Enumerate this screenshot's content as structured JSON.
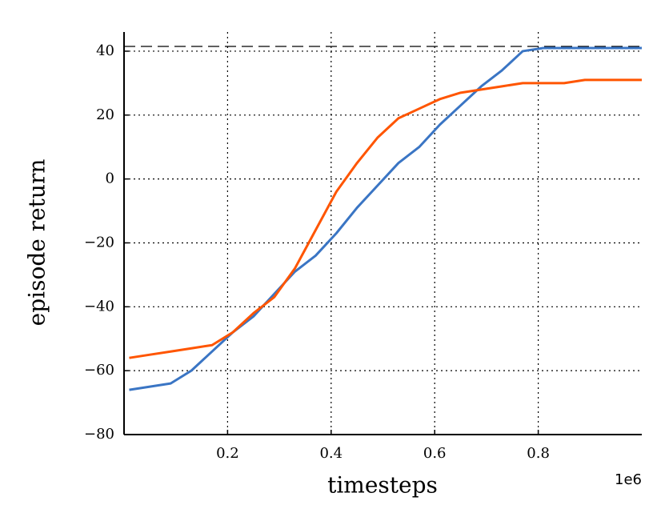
{
  "chart_data": {
    "type": "line",
    "x_label": "timesteps",
    "y_label": "episode return",
    "x_multiplier": "1e6",
    "xlim": [
      0,
      1.0
    ],
    "ylim": [
      -80,
      46
    ],
    "xticks": [
      0.2,
      0.4,
      0.6,
      0.8
    ],
    "yticks": [
      {
        "value": -80,
        "label": "−80"
      },
      {
        "value": -60,
        "label": "−60"
      },
      {
        "value": -40,
        "label": "−40"
      },
      {
        "value": -20,
        "label": "−20"
      },
      0,
      20,
      40
    ],
    "grid": true,
    "reference_line": 41.5,
    "x": [
      0.01,
      0.05,
      0.09,
      0.13,
      0.17,
      0.21,
      0.25,
      0.29,
      0.33,
      0.37,
      0.41,
      0.45,
      0.49,
      0.53,
      0.57,
      0.61,
      0.65,
      0.69,
      0.73,
      0.77,
      0.81,
      0.85,
      0.89,
      0.93,
      0.97,
      1.0
    ],
    "series": [
      {
        "color": "#3a75c4",
        "values": [
          -66,
          -65,
          -64,
          -60,
          -54,
          -48,
          -43,
          -36,
          -29,
          -24,
          -17,
          -9,
          -2,
          5,
          10,
          17,
          23,
          29,
          34,
          40,
          41,
          41,
          41,
          41,
          41,
          41
        ]
      },
      {
        "color": "#ff5500",
        "values": [
          -56,
          -55,
          -54,
          -53,
          -52,
          -48,
          -42,
          -37,
          -28,
          -16,
          -4,
          5,
          13,
          19,
          22,
          25,
          27,
          28,
          29,
          30,
          30,
          30,
          31,
          31,
          31,
          31
        ]
      }
    ]
  }
}
